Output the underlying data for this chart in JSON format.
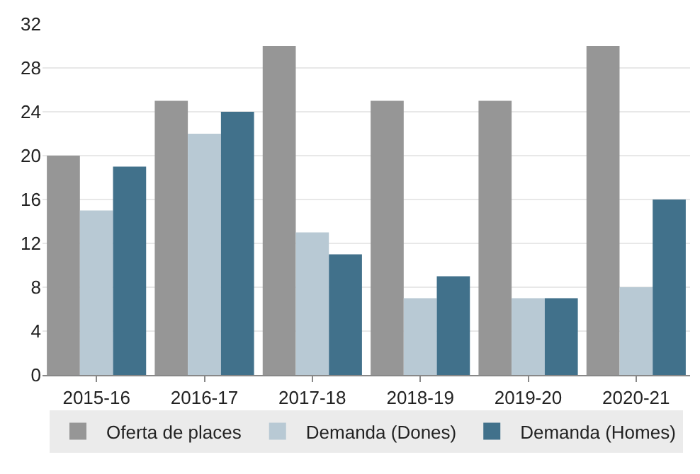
{
  "chart_data": {
    "type": "bar",
    "categories": [
      "2015-16",
      "2016-17",
      "2017-18",
      "2018-19",
      "2019-20",
      "2020-21"
    ],
    "series": [
      {
        "name": "Oferta de places",
        "color": "#969696",
        "values": [
          20,
          25,
          30,
          25,
          25,
          30
        ]
      },
      {
        "name": "Demanda (Dones)",
        "color": "#b8c9d4",
        "values": [
          15,
          22,
          13,
          7,
          7,
          8
        ]
      },
      {
        "name": "Demanda (Homes)",
        "color": "#41718b",
        "values": [
          19,
          24,
          11,
          9,
          7,
          16
        ]
      }
    ],
    "ylim": [
      0,
      32
    ],
    "yticks": [
      0,
      4,
      8,
      12,
      16,
      20,
      24,
      28,
      32
    ],
    "grid": "y",
    "legend": "bottom"
  }
}
